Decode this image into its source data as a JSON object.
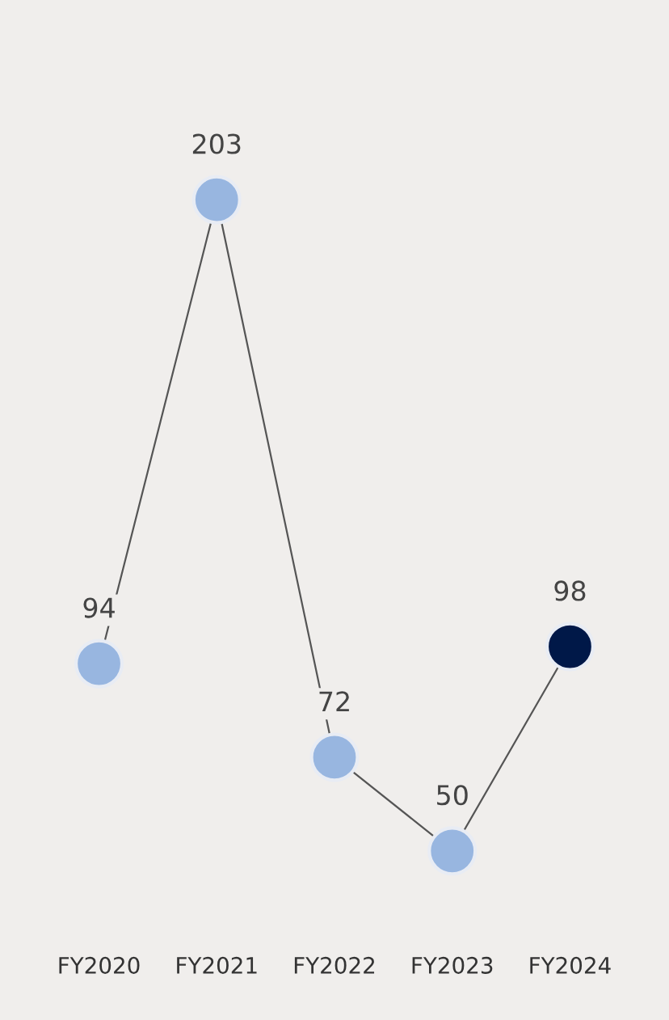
{
  "chart_data": {
    "type": "line",
    "categories": [
      "FY2020",
      "FY2021",
      "FY2022",
      "FY2023",
      "FY2024"
    ],
    "series": [
      {
        "color": "#555555",
        "colors": [
          "#98b6e0",
          "#98b6e0",
          "#98b6e0",
          "#98b6e0",
          "#001848"
        ],
        "values": [
          94,
          203,
          72,
          50,
          98
        ]
      }
    ],
    "data_labels": true,
    "marker": "circle",
    "line_style": "solid",
    "grid": false,
    "legend": false,
    "tick_labels": "x"
  }
}
